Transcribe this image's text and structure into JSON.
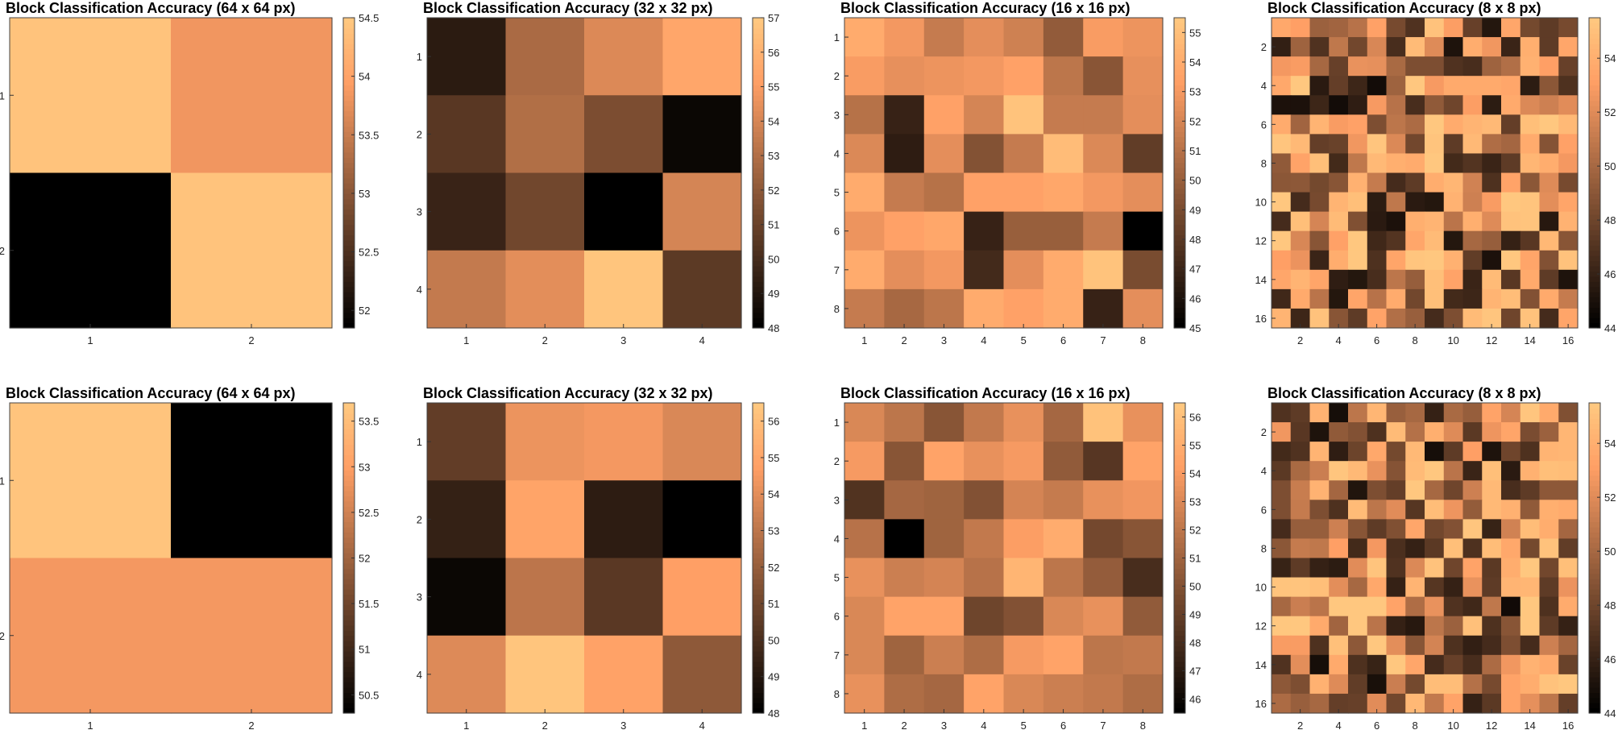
{
  "chart_data": [
    {
      "type": "heatmap",
      "title": "Block Classification Accuracy (64 x 64 px)",
      "x_ticks": [
        "1",
        "2"
      ],
      "y_ticks": [
        "1",
        "2"
      ],
      "colorbar": {
        "range": [
          51.85,
          54.5
        ],
        "ticks": [
          "52",
          "52.5",
          "53",
          "53.5",
          "54",
          "54.5"
        ]
      },
      "values": [
        [
          54.45,
          53.85
        ],
        [
          51.85,
          54.45
        ]
      ]
    },
    {
      "type": "heatmap",
      "title": "Block Classification Accuracy (32 x 32 px)",
      "x_ticks": [
        "1",
        "2",
        "3",
        "4"
      ],
      "y_ticks": [
        "1",
        "2",
        "3",
        "4"
      ],
      "colorbar": {
        "range": [
          48,
          57
        ],
        "ticks": [
          "48",
          "49",
          "50",
          "51",
          "52",
          "53",
          "54",
          "55",
          "56",
          "57"
        ]
      },
      "values": [
        [
          49.2,
          52.8,
          54.2,
          55.5
        ],
        [
          50.5,
          53,
          51.5,
          48.3
        ],
        [
          49.6,
          51.2,
          48,
          54
        ],
        [
          53.5,
          54.4,
          56.9,
          50.6
        ]
      ]
    },
    {
      "type": "heatmap",
      "title": "Block Classification Accuracy (16 x 16 px)",
      "x_ticks": [
        "1",
        "2",
        "3",
        "4",
        "5",
        "6",
        "7",
        "8"
      ],
      "y_ticks": [
        "1",
        "2",
        "3",
        "4",
        "5",
        "6",
        "7",
        "8"
      ],
      "colorbar": {
        "range": [
          45,
          55.5
        ],
        "ticks": [
          "45",
          "46",
          "47",
          "48",
          "49",
          "50",
          "51",
          "52",
          "53",
          "54",
          "55"
        ]
      },
      "values": [
        [
          54,
          53,
          51.5,
          52.5,
          51.8,
          49.8,
          53.2,
          52.8
        ],
        [
          53.2,
          52.6,
          52.8,
          53,
          53.5,
          51.2,
          49.5,
          52.6
        ],
        [
          51,
          46.8,
          53.5,
          52,
          55.3,
          51.5,
          51.5,
          52.5
        ],
        [
          52.2,
          46.5,
          52.5,
          49.3,
          51.5,
          54.9,
          52.2,
          48.2
        ],
        [
          54,
          51.5,
          51,
          53.5,
          53.5,
          53.8,
          53,
          52.5
        ],
        [
          52.8,
          53.5,
          53.8,
          46.8,
          50,
          50,
          51.5,
          45
        ],
        [
          54,
          52.5,
          53,
          47.2,
          52.5,
          54,
          55.3,
          49
        ],
        [
          51.5,
          50.5,
          51.2,
          54,
          53.5,
          54,
          46.8,
          52.5
        ]
      ]
    },
    {
      "type": "heatmap",
      "title": "Block Classification Accuracy (8 x 8 px)",
      "x_ticks": [
        "2",
        "4",
        "6",
        "8",
        "10",
        "12",
        "14",
        "16"
      ],
      "y_ticks": [
        "2",
        "4",
        "6",
        "8",
        "10",
        "12",
        "14",
        "16"
      ],
      "colorbar": {
        "range": [
          44,
          55.5
        ],
        "ticks": [
          "44",
          "46",
          "48",
          "50",
          "52",
          "54"
        ]
      }
    },
    {
      "type": "heatmap",
      "title": "Block Classification Accuracy (64 x 64 px)",
      "x_ticks": [
        "1",
        "2"
      ],
      "y_ticks": [
        "1",
        "2"
      ],
      "colorbar": {
        "range": [
          50.3,
          53.7
        ],
        "ticks": [
          "50.5",
          "51",
          "51.5",
          "52",
          "52.5",
          "53",
          "53.5"
        ]
      },
      "values": [
        [
          53.65,
          50.3
        ],
        [
          52.9,
          52.9
        ]
      ]
    },
    {
      "type": "heatmap",
      "title": "Block Classification Accuracy (32 x 32 px)",
      "x_ticks": [
        "1",
        "2",
        "3",
        "4"
      ],
      "y_ticks": [
        "1",
        "2",
        "3",
        "4"
      ],
      "colorbar": {
        "range": [
          48,
          56.5
        ],
        "ticks": [
          "48",
          "49",
          "50",
          "51",
          "52",
          "53",
          "54",
          "55",
          "56"
        ]
      },
      "values": [
        [
          50.6,
          54.3,
          54.5,
          53.8
        ],
        [
          49.4,
          55,
          49.2,
          48
        ],
        [
          48.3,
          53,
          50.4,
          54.8
        ],
        [
          53.9,
          56.4,
          54.9,
          51.8
        ]
      ]
    },
    {
      "type": "heatmap",
      "title": "Block Classification Accuracy (16 x 16 px)",
      "x_ticks": [
        "1",
        "2",
        "3",
        "4",
        "5",
        "6",
        "7",
        "8"
      ],
      "y_ticks": [
        "1",
        "2",
        "3",
        "4",
        "5",
        "6",
        "7",
        "8"
      ],
      "colorbar": {
        "range": [
          45.5,
          56.5
        ],
        "ticks": [
          "46",
          "47",
          "48",
          "49",
          "50",
          "51",
          "52",
          "53",
          "54",
          "55",
          "56"
        ]
      },
      "values": [
        [
          53,
          52,
          50.2,
          52.2,
          53.5,
          51.2,
          56.2,
          53.5
        ],
        [
          54,
          50.2,
          54.5,
          53.5,
          54,
          50.5,
          48.5,
          54.5
        ],
        [
          48.3,
          51.2,
          51,
          50,
          52.8,
          52.3,
          53.5,
          53.8
        ],
        [
          51.8,
          45.5,
          51,
          52.2,
          54.2,
          55,
          49.5,
          50.2
        ],
        [
          53.5,
          52.5,
          52.8,
          51.8,
          55.5,
          52,
          50.6,
          48
        ],
        [
          53,
          54.5,
          54.5,
          49.3,
          50,
          53,
          53.5,
          50.5
        ],
        [
          53,
          51,
          52.5,
          51.5,
          54,
          54.5,
          52,
          52.2
        ],
        [
          53.5,
          51.5,
          51.2,
          54.5,
          53,
          52.5,
          52.2,
          51.5
        ]
      ]
    },
    {
      "type": "heatmap",
      "title": "Block Classification Accuracy (8 x 8 px)",
      "x_ticks": [
        "2",
        "4",
        "6",
        "8",
        "10",
        "12",
        "14",
        "16"
      ],
      "y_ticks": [
        "2",
        "4",
        "6",
        "8",
        "10",
        "12",
        "14",
        "16"
      ],
      "colorbar": {
        "range": [
          44,
          55.5
        ],
        "ticks": [
          "44",
          "46",
          "48",
          "50",
          "52",
          "54"
        ]
      }
    }
  ],
  "colors": {
    "colormap": "copper",
    "dark": "#000000",
    "light": "#FFC77F"
  }
}
